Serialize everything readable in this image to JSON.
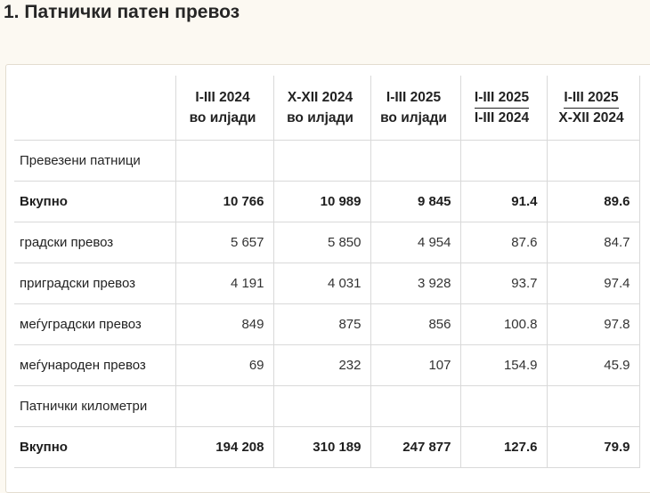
{
  "title": "1. Патнички патен превоз",
  "table": {
    "headers": [
      {
        "line1": "I-III 2024",
        "line2": "во илјади",
        "ratio": false
      },
      {
        "line1": "X-XII 2024",
        "line2": "во илјади",
        "ratio": false
      },
      {
        "line1": "I-III 2025",
        "line2": "во илјади",
        "ratio": false
      },
      {
        "line1": "I-III 2025",
        "line2": "I-III 2024",
        "ratio": true
      },
      {
        "line1": "I-III 2025",
        "line2": "X-XII 2024",
        "ratio": true
      }
    ],
    "rows": [
      {
        "label": "Превезени патници",
        "values": [
          "",
          "",
          "",
          "",
          ""
        ],
        "bold": false
      },
      {
        "label": "Вкупно",
        "values": [
          "10 766",
          "10 989",
          "9 845",
          "91.4",
          "89.6"
        ],
        "bold": true
      },
      {
        "label": "градски превоз",
        "values": [
          "5 657",
          "5 850",
          "4 954",
          "87.6",
          "84.7"
        ],
        "bold": false
      },
      {
        "label": "приградски превоз",
        "values": [
          "4 191",
          "4 031",
          "3 928",
          "93.7",
          "97.4"
        ],
        "bold": false
      },
      {
        "label": "меѓуградски превоз",
        "values": [
          "849",
          "875",
          "856",
          "100.8",
          "97.8"
        ],
        "bold": false
      },
      {
        "label": "меѓународен превоз",
        "values": [
          "69",
          "232",
          "107",
          "154.9",
          "45.9"
        ],
        "bold": false
      },
      {
        "label": "Патнички километри",
        "values": [
          "",
          "",
          "",
          "",
          ""
        ],
        "bold": false
      },
      {
        "label": "Вкупно",
        "values": [
          "194 208",
          "310 189",
          "247 877",
          "127.6",
          "79.9"
        ],
        "bold": true
      }
    ]
  }
}
